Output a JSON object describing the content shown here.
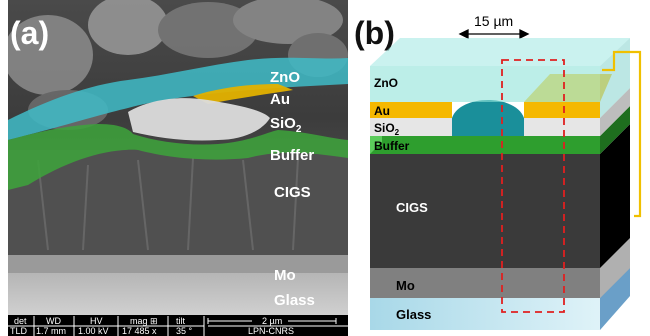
{
  "panel_a": {
    "label": "(a)",
    "layers": {
      "zno": "ZnO",
      "au": "Au",
      "sio2_base": "SiO",
      "sio2_sub": "2",
      "buffer": "Buffer",
      "cigs": "CIGS",
      "mo": "Mo",
      "glass": "Glass"
    },
    "info_bar": {
      "headers": [
        "det",
        "WD",
        "HV",
        "mag ⊞",
        "tilt"
      ],
      "values": [
        "TLD",
        "1.7 mm",
        "1.00 kV",
        "17 485 x",
        "35 °"
      ],
      "scale": "2 µm",
      "lab": "LPN-CNRS"
    },
    "colors": {
      "zno": "#3fbcc8",
      "au": "#e3b100",
      "sio2": "#d8d8d8",
      "buffer": "#3da53b"
    }
  },
  "panel_b": {
    "label": "(b)",
    "dimension": "15 µm",
    "layers": {
      "zno": "ZnO",
      "au": "Au",
      "sio2_base": "SiO",
      "sio2_sub": "2",
      "buffer": "Buffer",
      "cigs": "CIGS",
      "mo": "Mo",
      "glass": "Glass"
    },
    "colors": {
      "zno": "#8fe3d9",
      "au": "#f5b800",
      "buffer": "#2e9e2e",
      "cigs": "#3a3a3a",
      "mo": "#808080",
      "glass": "#c8e8f0",
      "contact": "#f0c000",
      "marker": "#e02020"
    }
  }
}
